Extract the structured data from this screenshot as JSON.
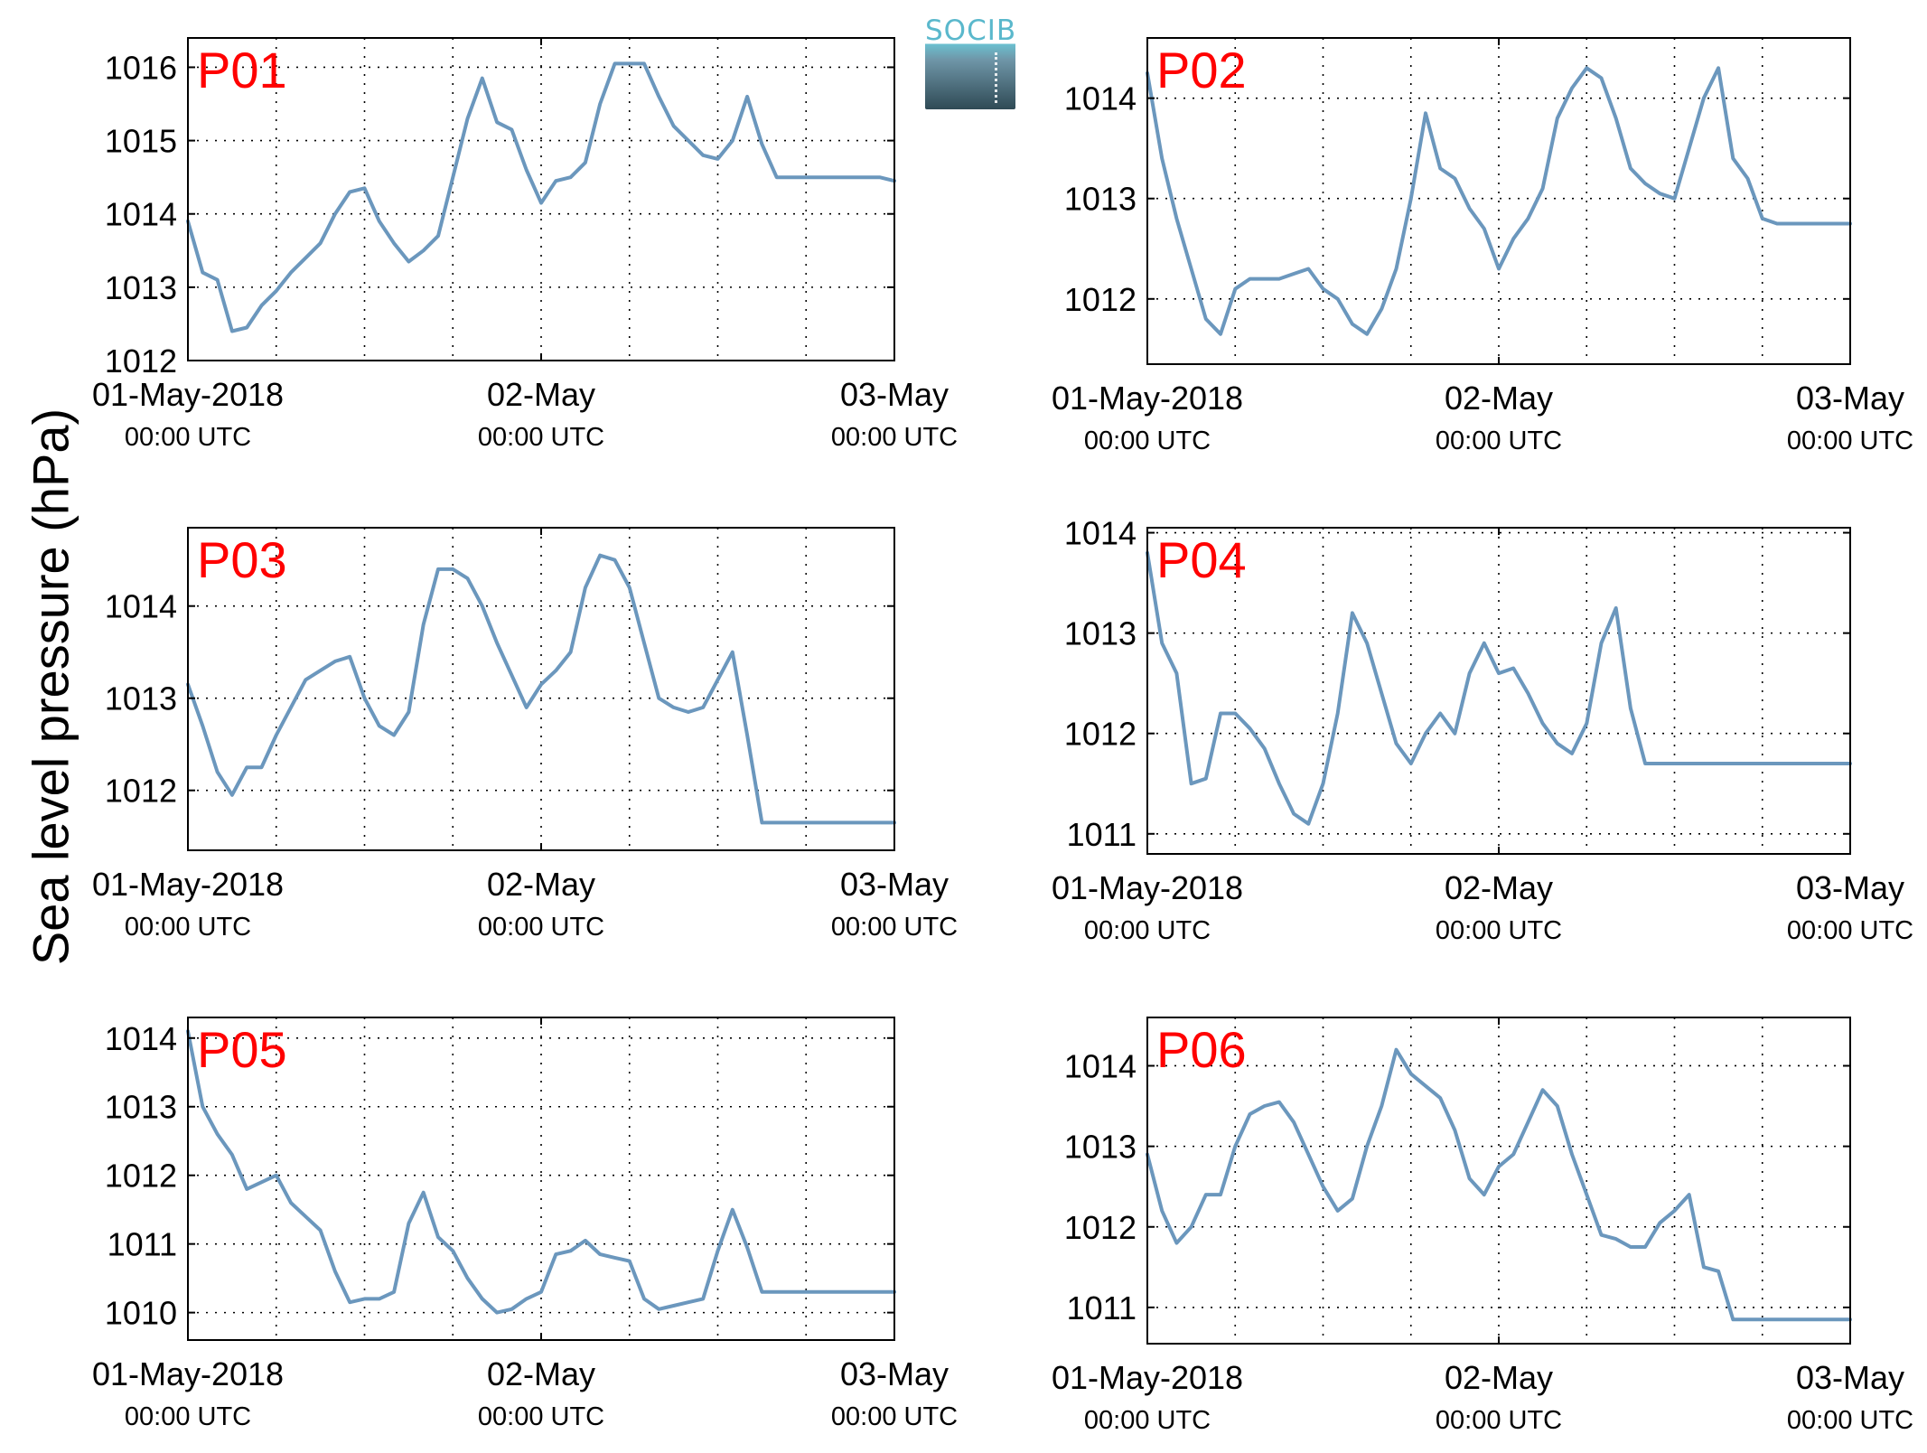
{
  "ylabel": "Sea level pressure (hPa)",
  "logo": {
    "text": "SOCIB"
  },
  "colors": {
    "line": "#6b97bd",
    "panel_label": "#ff0000",
    "axes": "#000000",
    "grid": "#000000"
  },
  "chart_data": [
    {
      "type": "line",
      "title": "P01",
      "x_start": "01-May-2018 00:00 UTC",
      "x_end": "03-May-2018 00:00 UTC",
      "ylim": [
        1012,
        1016.4
      ],
      "yticks": [
        1012,
        1013,
        1014,
        1015,
        1016
      ],
      "grid": true,
      "xticks": [
        {
          "label": "01-May-2018",
          "sub": "00:00 UTC"
        },
        {
          "label": "02-May",
          "sub": "00:00 UTC"
        },
        {
          "label": "03-May",
          "sub": "00:00 UTC"
        }
      ],
      "x_hours": [
        0,
        1,
        2,
        3,
        4,
        5,
        6,
        7,
        8,
        9,
        10,
        11,
        12,
        13,
        14,
        15,
        16,
        17,
        18,
        19,
        20,
        21,
        22,
        23,
        24,
        25,
        26,
        27,
        28,
        29,
        30,
        31,
        32,
        33,
        34,
        35,
        36,
        37,
        38,
        39,
        40,
        41,
        42,
        43,
        44,
        45,
        46,
        47,
        48
      ],
      "values": [
        1013.9,
        1013.2,
        1013.1,
        1012.4,
        1012.45,
        1012.75,
        1012.95,
        1013.2,
        1013.4,
        1013.6,
        1014.0,
        1014.3,
        1014.35,
        1013.9,
        1013.6,
        1013.35,
        1013.5,
        1013.7,
        1014.5,
        1015.3,
        1015.85,
        1015.25,
        1015.15,
        1014.6,
        1014.15,
        1014.45,
        1014.5,
        1014.7,
        1015.5,
        1016.05,
        1016.05,
        1016.05,
        1015.6,
        1015.2,
        1015.0,
        1014.8,
        1014.75,
        1015.0,
        1015.6,
        1014.95,
        1014.5,
        1014.5,
        1014.5,
        1014.5,
        1014.5,
        1014.5,
        1014.5,
        1014.5,
        1014.45
      ]
    },
    {
      "type": "line",
      "title": "P02",
      "x_start": "01-May-2018 00:00 UTC",
      "x_end": "03-May-2018 00:00 UTC",
      "ylim": [
        1011.35,
        1014.6
      ],
      "yticks": [
        1012,
        1013,
        1014
      ],
      "grid": true,
      "xticks": [
        {
          "label": "01-May-2018",
          "sub": "00:00 UTC"
        },
        {
          "label": "02-May",
          "sub": "00:00 UTC"
        },
        {
          "label": "03-May",
          "sub": "00:00 UTC"
        }
      ],
      "x_hours": [
        0,
        1,
        2,
        3,
        4,
        5,
        6,
        7,
        8,
        9,
        10,
        11,
        12,
        13,
        14,
        15,
        16,
        17,
        18,
        19,
        20,
        21,
        22,
        23,
        24,
        25,
        26,
        27,
        28,
        29,
        30,
        31,
        32,
        33,
        34,
        35,
        36,
        37,
        38,
        39,
        40,
        41,
        42,
        43,
        44,
        45,
        46,
        47,
        48
      ],
      "values": [
        1014.25,
        1013.4,
        1012.8,
        1012.3,
        1011.8,
        1011.65,
        1012.1,
        1012.2,
        1012.2,
        1012.2,
        1012.25,
        1012.3,
        1012.1,
        1012.0,
        1011.75,
        1011.65,
        1011.9,
        1012.3,
        1013.0,
        1013.85,
        1013.3,
        1013.2,
        1012.9,
        1012.7,
        1012.3,
        1012.6,
        1012.8,
        1013.1,
        1013.8,
        1014.1,
        1014.3,
        1014.2,
        1013.8,
        1013.3,
        1013.15,
        1013.05,
        1013.0,
        1013.5,
        1014.0,
        1014.3,
        1013.4,
        1013.2,
        1012.8,
        1012.75,
        1012.75,
        1012.75,
        1012.75,
        1012.75,
        1012.75
      ]
    },
    {
      "type": "line",
      "title": "P03",
      "x_start": "01-May-2018 00:00 UTC",
      "x_end": "03-May-2018 00:00 UTC",
      "ylim": [
        1011.35,
        1014.85
      ],
      "yticks": [
        1012,
        1013,
        1014
      ],
      "grid": true,
      "xticks": [
        {
          "label": "01-May-2018",
          "sub": "00:00 UTC"
        },
        {
          "label": "02-May",
          "sub": "00:00 UTC"
        },
        {
          "label": "03-May",
          "sub": "00:00 UTC"
        }
      ],
      "x_hours": [
        0,
        1,
        2,
        3,
        4,
        5,
        6,
        7,
        8,
        9,
        10,
        11,
        12,
        13,
        14,
        15,
        16,
        17,
        18,
        19,
        20,
        21,
        22,
        23,
        24,
        25,
        26,
        27,
        28,
        29,
        30,
        31,
        32,
        33,
        34,
        35,
        36,
        37,
        38,
        39,
        40,
        41,
        42,
        43,
        44,
        45,
        46,
        47,
        48
      ],
      "values": [
        1013.15,
        1012.7,
        1012.2,
        1011.95,
        1012.25,
        1012.25,
        1012.6,
        1012.9,
        1013.2,
        1013.3,
        1013.4,
        1013.45,
        1013.0,
        1012.7,
        1012.6,
        1012.85,
        1013.8,
        1014.4,
        1014.4,
        1014.3,
        1014.0,
        1013.6,
        1013.25,
        1012.9,
        1013.15,
        1013.3,
        1013.5,
        1014.2,
        1014.55,
        1014.5,
        1014.2,
        1013.6,
        1013.0,
        1012.9,
        1012.85,
        1012.9,
        1013.2,
        1013.5,
        1012.6,
        1011.65,
        1011.65,
        1011.65,
        1011.65,
        1011.65,
        1011.65,
        1011.65,
        1011.65,
        1011.65,
        1011.65
      ]
    },
    {
      "type": "line",
      "title": "P04",
      "x_start": "01-May-2018 00:00 UTC",
      "x_end": "03-May-2018 00:00 UTC",
      "ylim": [
        1010.8,
        1014.05
      ],
      "yticks": [
        1011,
        1012,
        1013,
        1014
      ],
      "grid": true,
      "xticks": [
        {
          "label": "01-May-2018",
          "sub": "00:00 UTC"
        },
        {
          "label": "02-May",
          "sub": "00:00 UTC"
        },
        {
          "label": "03-May",
          "sub": "00:00 UTC"
        }
      ],
      "x_hours": [
        0,
        1,
        2,
        3,
        4,
        5,
        6,
        7,
        8,
        9,
        10,
        11,
        12,
        13,
        14,
        15,
        16,
        17,
        18,
        19,
        20,
        21,
        22,
        23,
        24,
        25,
        26,
        27,
        28,
        29,
        30,
        31,
        32,
        33,
        34,
        35,
        36,
        37,
        38,
        39,
        40,
        41,
        42,
        43,
        44,
        45,
        46,
        47,
        48
      ],
      "values": [
        1013.8,
        1012.9,
        1012.6,
        1011.5,
        1011.55,
        1012.2,
        1012.2,
        1012.05,
        1011.85,
        1011.5,
        1011.2,
        1011.1,
        1011.5,
        1012.2,
        1013.2,
        1012.9,
        1012.4,
        1011.9,
        1011.7,
        1012.0,
        1012.2,
        1012.0,
        1012.6,
        1012.9,
        1012.6,
        1012.65,
        1012.4,
        1012.1,
        1011.9,
        1011.8,
        1012.1,
        1012.9,
        1013.25,
        1012.25,
        1011.7,
        1011.7,
        1011.7,
        1011.7,
        1011.7,
        1011.7,
        1011.7,
        1011.7,
        1011.7,
        1011.7,
        1011.7,
        1011.7,
        1011.7,
        1011.7,
        1011.7
      ]
    },
    {
      "type": "line",
      "title": "P05",
      "x_start": "01-May-2018 00:00 UTC",
      "x_end": "03-May-2018 00:00 UTC",
      "ylim": [
        1009.6,
        1014.3
      ],
      "yticks": [
        1010,
        1011,
        1012,
        1013,
        1014
      ],
      "grid": true,
      "xticks": [
        {
          "label": "01-May-2018",
          "sub": "00:00 UTC"
        },
        {
          "label": "02-May",
          "sub": "00:00 UTC"
        },
        {
          "label": "03-May",
          "sub": "00:00 UTC"
        }
      ],
      "x_hours": [
        0,
        1,
        2,
        3,
        4,
        5,
        6,
        7,
        8,
        9,
        10,
        11,
        12,
        13,
        14,
        15,
        16,
        17,
        18,
        19,
        20,
        21,
        22,
        23,
        24,
        25,
        26,
        27,
        28,
        29,
        30,
        31,
        32,
        33,
        34,
        35,
        36,
        37,
        38,
        39,
        40,
        41,
        42,
        43,
        44,
        45,
        46,
        47,
        48
      ],
      "values": [
        1014.1,
        1013.0,
        1012.6,
        1012.3,
        1011.8,
        1011.9,
        1012.0,
        1011.6,
        1011.4,
        1011.2,
        1010.6,
        1010.15,
        1010.2,
        1010.2,
        1010.3,
        1011.3,
        1011.75,
        1011.1,
        1010.9,
        1010.5,
        1010.2,
        1010.0,
        1010.05,
        1010.2,
        1010.3,
        1010.85,
        1010.9,
        1011.05,
        1010.85,
        1010.8,
        1010.75,
        1010.2,
        1010.05,
        1010.1,
        1010.15,
        1010.2,
        1010.9,
        1011.5,
        1010.95,
        1010.3,
        1010.3,
        1010.3,
        1010.3,
        1010.3,
        1010.3,
        1010.3,
        1010.3,
        1010.3,
        1010.3
      ]
    },
    {
      "type": "line",
      "title": "P06",
      "x_start": "01-May-2018 00:00 UTC",
      "x_end": "03-May-2018 00:00 UTC",
      "ylim": [
        1010.55,
        1014.6
      ],
      "yticks": [
        1011,
        1012,
        1013,
        1014
      ],
      "grid": true,
      "xticks": [
        {
          "label": "01-May-2018",
          "sub": "00:00 UTC"
        },
        {
          "label": "02-May",
          "sub": "00:00 UTC"
        },
        {
          "label": "03-May",
          "sub": "00:00 UTC"
        }
      ],
      "x_hours": [
        0,
        1,
        2,
        3,
        4,
        5,
        6,
        7,
        8,
        9,
        10,
        11,
        12,
        13,
        14,
        15,
        16,
        17,
        18,
        19,
        20,
        21,
        22,
        23,
        24,
        25,
        26,
        27,
        28,
        29,
        30,
        31,
        32,
        33,
        34,
        35,
        36,
        37,
        38,
        39,
        40,
        41,
        42,
        43,
        44,
        45,
        46,
        47,
        48
      ],
      "values": [
        1012.9,
        1012.2,
        1011.8,
        1012.0,
        1012.4,
        1012.4,
        1013.0,
        1013.4,
        1013.5,
        1013.55,
        1013.3,
        1012.9,
        1012.5,
        1012.2,
        1012.35,
        1013.0,
        1013.5,
        1014.2,
        1013.9,
        1013.75,
        1013.6,
        1013.2,
        1012.6,
        1012.4,
        1012.75,
        1012.9,
        1013.3,
        1013.7,
        1013.5,
        1012.9,
        1012.4,
        1011.9,
        1011.85,
        1011.75,
        1011.75,
        1012.05,
        1012.2,
        1012.4,
        1011.5,
        1011.45,
        1010.85,
        1010.85,
        1010.85,
        1010.85,
        1010.85,
        1010.85,
        1010.85,
        1010.85,
        1010.85
      ]
    }
  ]
}
